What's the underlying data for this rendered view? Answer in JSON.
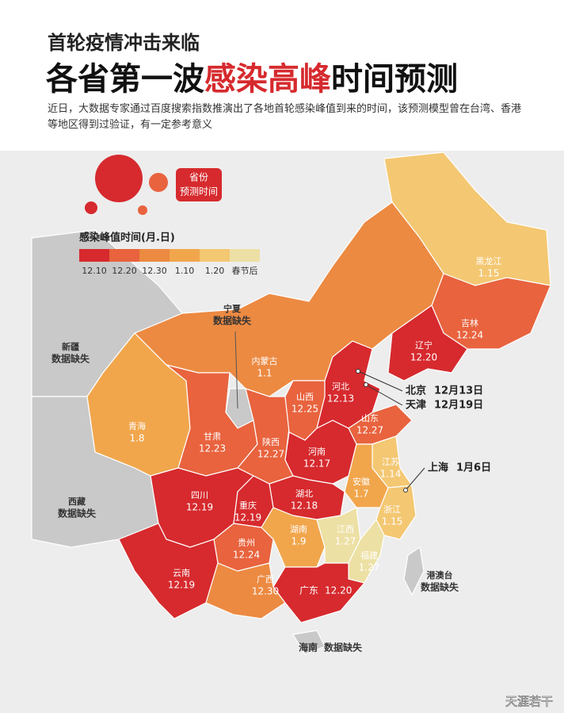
{
  "header": {
    "line1": "首轮疫情冲击来临",
    "line2_a": "各省第一波",
    "line2_b": "感染高峰",
    "line2_c": "时间预测",
    "description": "近日，大数据专家通过百度搜索指数推演出了各地首轮感染峰值到来的时间，该预测模型曾在台湾、香港等地区得到过验证，有一定参考意义"
  },
  "badge": {
    "line1": "省份",
    "line2": "预测时间"
  },
  "legend": {
    "title": "感染峰值时间(月.日)",
    "items": [
      {
        "label": "12.10",
        "color": "#d62a2e"
      },
      {
        "label": "12.20",
        "color": "#e8633e"
      },
      {
        "label": "12.30",
        "color": "#ec8a42"
      },
      {
        "label": "1.10",
        "color": "#f1a64c"
      },
      {
        "label": "1.20",
        "color": "#f4c772"
      },
      {
        "label": "春节后",
        "color": "#ede0a4"
      }
    ]
  },
  "regions": [
    {
      "name": "黑龙江",
      "label": "1.15",
      "color": "#f4c772"
    },
    {
      "name": "吉林",
      "label": "12.24",
      "color": "#e8633e"
    },
    {
      "name": "辽宁",
      "label": "12.20",
      "color": "#d62a2e"
    },
    {
      "name": "内蒙古",
      "label": "1.1",
      "color": "#ec8a42"
    },
    {
      "name": "宁夏",
      "label": "数据缺失",
      "color": "#c9c9c9"
    },
    {
      "name": "新疆",
      "label": "数据缺失",
      "color": "#c9c9c9"
    },
    {
      "name": "西藏",
      "label": "数据缺失",
      "color": "#c9c9c9"
    },
    {
      "name": "青海",
      "label": "1.8",
      "color": "#f1a64c"
    },
    {
      "name": "甘肃",
      "label": "12.23",
      "color": "#e8633e"
    },
    {
      "name": "陕西",
      "label": "12.27",
      "color": "#e8633e"
    },
    {
      "name": "山西",
      "label": "12.25",
      "color": "#e8633e"
    },
    {
      "name": "河北",
      "label": "12.13",
      "color": "#d62a2e"
    },
    {
      "name": "山东",
      "label": "12.27",
      "color": "#e8633e"
    },
    {
      "name": "河南",
      "label": "12.17",
      "color": "#d62a2e"
    },
    {
      "name": "江苏",
      "label": "1.14",
      "color": "#f4c772"
    },
    {
      "name": "安徽",
      "label": "1.7",
      "color": "#f1a64c"
    },
    {
      "name": "浙江",
      "label": "1.15",
      "color": "#f4c772"
    },
    {
      "name": "湖北",
      "label": "12.18",
      "color": "#d62a2e"
    },
    {
      "name": "四川",
      "label": "12.19",
      "color": "#d62a2e"
    },
    {
      "name": "重庆",
      "label": "12.19",
      "color": "#d62a2e"
    },
    {
      "name": "贵州",
      "label": "12.24",
      "color": "#e8633e"
    },
    {
      "name": "湖南",
      "label": "1.9",
      "color": "#f1a64c"
    },
    {
      "name": "江西",
      "label": "1.27",
      "color": "#ede0a4"
    },
    {
      "name": "福建",
      "label": "1.27",
      "color": "#ede0a4"
    },
    {
      "name": "云南",
      "label": "12.19",
      "color": "#d62a2e"
    },
    {
      "name": "广西",
      "label": "12.30",
      "color": "#ec8a42"
    },
    {
      "name": "广东",
      "label": "12.20",
      "color": "#d62a2e"
    },
    {
      "name": "海南",
      "label": "数据缺失",
      "color": "#c9c9c9"
    },
    {
      "name": "港澳台",
      "label": "数据缺失",
      "color": "#c9c9c9"
    }
  ],
  "callouts": [
    {
      "name": "北京",
      "label": "12月13日"
    },
    {
      "name": "天津",
      "label": "12月19日"
    },
    {
      "name": "上海",
      "label": "1月6日"
    }
  ],
  "watermark": "天涯若干"
}
